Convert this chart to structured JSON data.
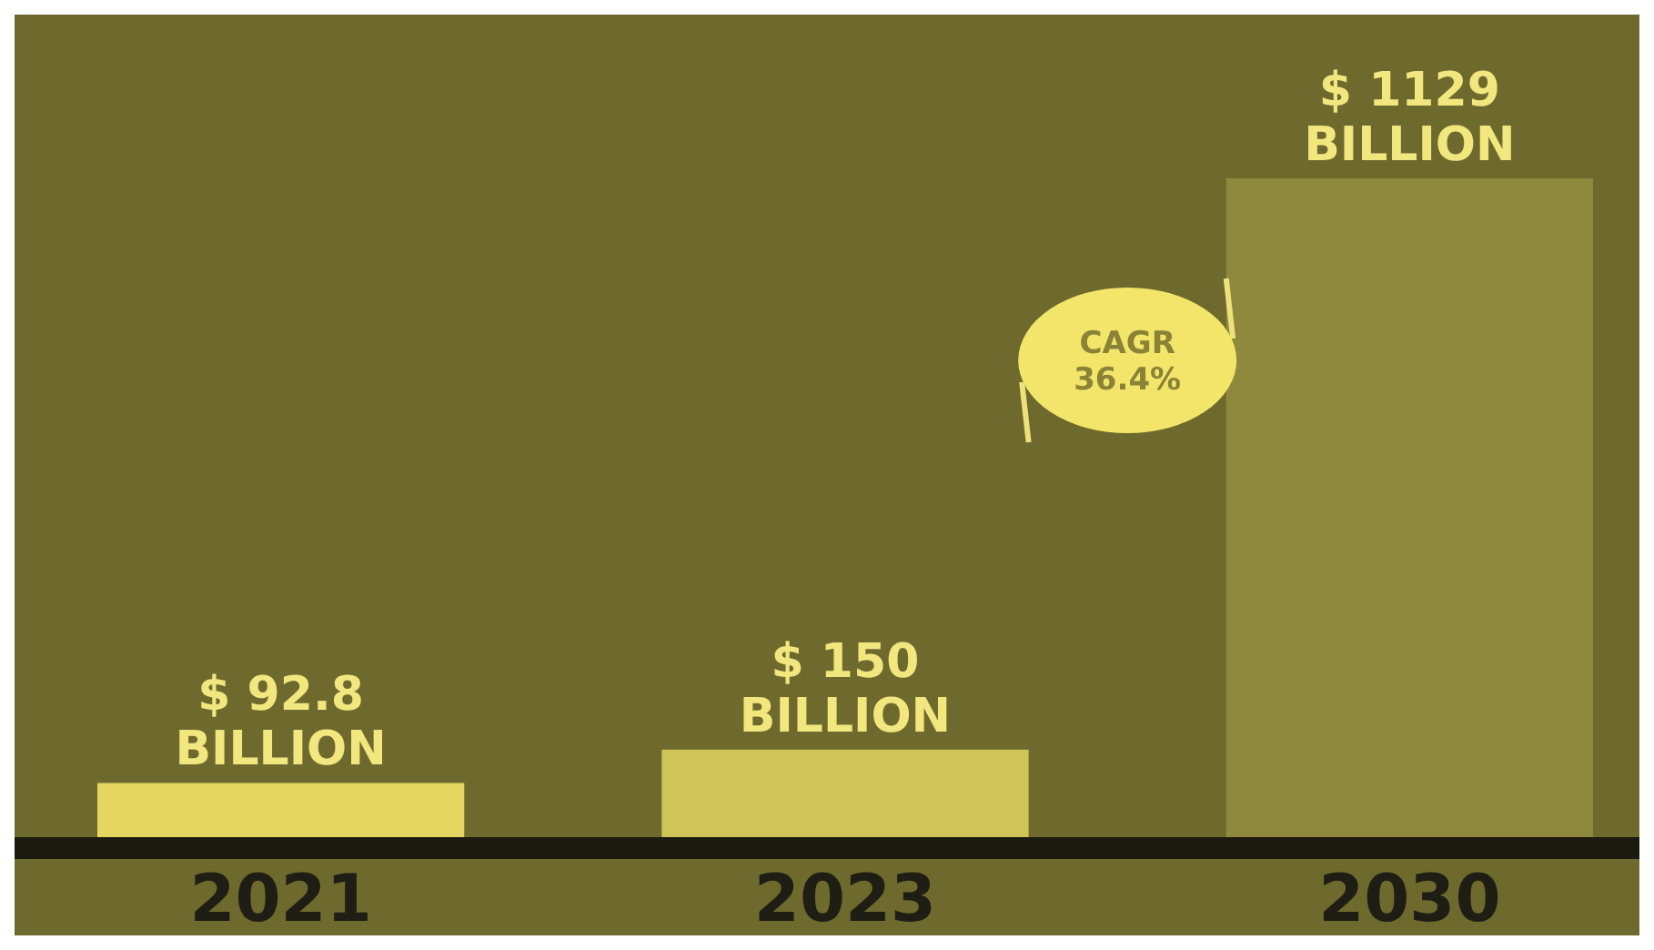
{
  "chart_data": {
    "type": "bar",
    "categories": [
      "2021",
      "2023",
      "2030"
    ],
    "values": [
      92.8,
      150,
      1129
    ],
    "colors": [
      "#e4d660",
      "#d0c457",
      "#8e893d"
    ],
    "value_labels": [
      "$ 92.8 BILLION",
      "$ 150 BILLION",
      "$ 1129 BILLION"
    ],
    "annotations": [
      "CAGR 36.4%"
    ],
    "tick_labels": "x"
  }
}
